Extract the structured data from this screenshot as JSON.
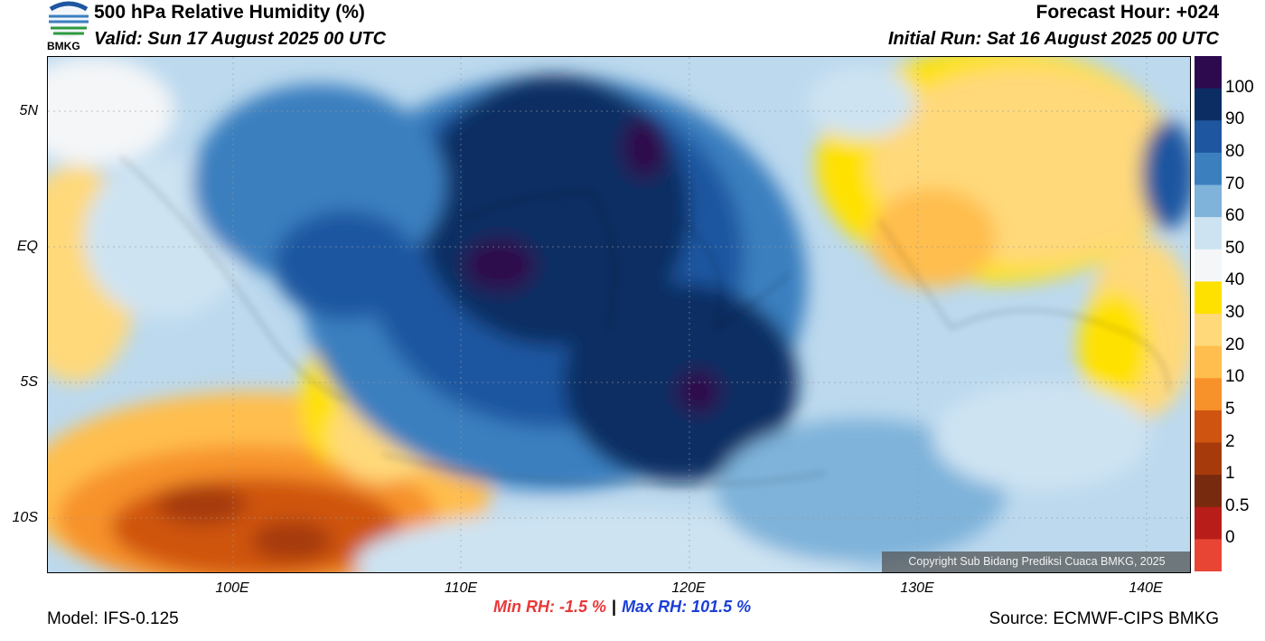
{
  "header": {
    "title": "500 hPa Relative Humidity (%)",
    "valid": "Valid: Sun 17 August 2025 00 UTC",
    "forecast_hour": "Forecast Hour: +024",
    "initial_run": "Initial Run: Sat 16 August 2025 00 UTC",
    "logo_text": "BMKG"
  },
  "map": {
    "lat_labels": [
      "5N",
      "EQ",
      "5S",
      "10S"
    ],
    "lon_labels": [
      "100E",
      "110E",
      "120E",
      "130E",
      "140E"
    ],
    "copyright": "Copyright Sub Bidang Prediksi Cuaca BMKG, 2025"
  },
  "colorbar": {
    "labels": [
      "100",
      "90",
      "80",
      "70",
      "60",
      "50",
      "40",
      "30",
      "20",
      "10",
      "5",
      "2",
      "1",
      "0.5",
      "0"
    ],
    "colors": [
      "#2d0a4e",
      "#0b2d63",
      "#1e56a0",
      "#3b7fbf",
      "#7fb3da",
      "#cde3f2",
      "#f4f6f8",
      "#ffe100",
      "#ffd97a",
      "#ffbe4d",
      "#f7922b",
      "#cf5410",
      "#a63a0b",
      "#782a0e",
      "#b81d19",
      "#e84535"
    ]
  },
  "footer": {
    "min_rh": "Min RH:  -1.5 %",
    "separator": "|",
    "max_rh": "Max RH: 101.5 %",
    "model": "Model: IFS-0.125",
    "source": "Source: ECMWF-CIPS BMKG"
  }
}
